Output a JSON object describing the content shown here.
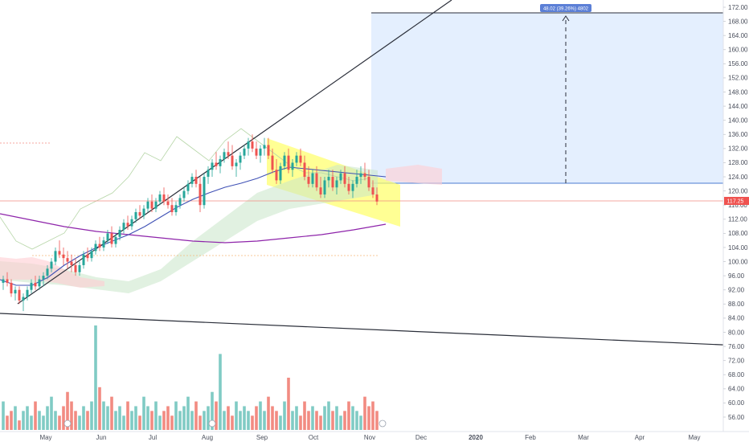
{
  "colors": {
    "up": "#26a69a",
    "down": "#ef5350",
    "up_volume": "#80cbc4",
    "down_volume": "#f28b82",
    "ma_blue": "#3f51b5",
    "ma_purple": "#8e24aa",
    "channel_fill": "#ffff66",
    "target_box": "#dbeafe",
    "last_price_bg": "#ef5350"
  },
  "price_axis": {
    "ticks": [
      "172.00",
      "168.00",
      "164.00",
      "160.00",
      "156.00",
      "152.00",
      "148.00",
      "144.00",
      "140.00",
      "136.00",
      "132.00",
      "128.00",
      "124.00",
      "120.00",
      "116.00",
      "112.00",
      "108.00",
      "104.00",
      "100.00",
      "96.00",
      "92.00",
      "88.00",
      "84.00",
      "80.00",
      "76.00",
      "72.00",
      "68.00",
      "64.00",
      "60.00",
      "56.00"
    ],
    "last_price_label": "117.25"
  },
  "time_axis": {
    "labels": [
      "May",
      "Jun",
      "Jul",
      "Aug",
      "Sep",
      "Oct",
      "Nov",
      "Dec",
      "2020",
      "Feb",
      "Mar",
      "Apr",
      "May"
    ]
  },
  "measure_label": "48.02 (39.26%) 4802",
  "chart_data": {
    "type": "candlestick",
    "x_start": "2019-04-22",
    "ylim": [
      54,
      174
    ],
    "candles": [
      [
        94,
        96,
        92,
        95
      ],
      [
        95,
        97,
        93,
        94
      ],
      [
        94,
        95,
        90,
        91
      ],
      [
        91,
        93,
        89,
        92
      ],
      [
        92,
        93,
        88,
        89
      ],
      [
        89,
        91,
        86,
        90
      ],
      [
        90,
        93,
        89,
        92
      ],
      [
        92,
        95,
        91,
        94
      ],
      [
        94,
        96,
        92,
        93
      ],
      [
        93,
        96,
        92,
        95
      ],
      [
        95,
        97,
        93,
        96
      ],
      [
        96,
        99,
        95,
        98
      ],
      [
        98,
        101,
        97,
        100
      ],
      [
        100,
        104,
        99,
        103
      ],
      [
        103,
        106,
        101,
        102
      ],
      [
        102,
        104,
        99,
        101
      ],
      [
        101,
        103,
        98,
        100
      ],
      [
        100,
        102,
        97,
        99
      ],
      [
        99,
        101,
        96,
        97
      ],
      [
        97,
        100,
        96,
        99
      ],
      [
        99,
        103,
        98,
        102
      ],
      [
        102,
        104,
        100,
        101
      ],
      [
        101,
        104,
        100,
        103
      ],
      [
        103,
        106,
        102,
        105
      ],
      [
        105,
        107,
        103,
        104
      ],
      [
        104,
        107,
        103,
        106
      ],
      [
        106,
        109,
        105,
        108
      ],
      [
        108,
        110,
        104,
        105
      ],
      [
        105,
        108,
        104,
        107
      ],
      [
        107,
        110,
        106,
        109
      ],
      [
        109,
        112,
        108,
        111
      ],
      [
        111,
        113,
        109,
        110
      ],
      [
        110,
        113,
        109,
        112
      ],
      [
        112,
        115,
        111,
        114
      ],
      [
        114,
        116,
        112,
        113
      ],
      [
        113,
        116,
        112,
        115
      ],
      [
        115,
        118,
        114,
        117
      ],
      [
        117,
        119,
        114,
        115
      ],
      [
        115,
        118,
        114,
        117
      ],
      [
        117,
        120,
        116,
        119
      ],
      [
        119,
        121,
        116,
        117
      ],
      [
        117,
        119,
        115,
        116
      ],
      [
        116,
        118,
        113,
        114
      ],
      [
        114,
        117,
        113,
        116
      ],
      [
        116,
        119,
        115,
        118
      ],
      [
        118,
        121,
        117,
        120
      ],
      [
        120,
        123,
        119,
        122
      ],
      [
        122,
        125,
        121,
        124
      ],
      [
        124,
        126,
        121,
        122
      ],
      [
        122,
        124,
        114,
        116
      ],
      [
        116,
        125,
        115,
        124
      ],
      [
        124,
        127,
        122,
        126
      ],
      [
        126,
        129,
        124,
        128
      ],
      [
        128,
        131,
        126,
        127
      ],
      [
        127,
        130,
        125,
        129
      ],
      [
        129,
        132,
        128,
        131
      ],
      [
        131,
        134,
        129,
        130
      ],
      [
        130,
        133,
        126,
        127
      ],
      [
        127,
        129,
        124,
        128
      ],
      [
        128,
        131,
        126,
        130
      ],
      [
        130,
        133,
        129,
        132
      ],
      [
        132,
        135,
        130,
        134
      ],
      [
        134,
        136,
        131,
        132
      ],
      [
        132,
        134,
        129,
        130
      ],
      [
        130,
        133,
        128,
        132
      ],
      [
        132,
        135,
        130,
        133
      ],
      [
        133,
        135,
        129,
        130
      ],
      [
        130,
        132,
        125,
        126
      ],
      [
        126,
        129,
        122,
        123
      ],
      [
        123,
        128,
        122,
        127
      ],
      [
        127,
        131,
        126,
        130
      ],
      [
        130,
        132,
        125,
        126
      ],
      [
        126,
        129,
        124,
        128
      ],
      [
        128,
        131,
        127,
        130
      ],
      [
        130,
        132,
        127,
        128
      ],
      [
        128,
        130,
        123,
        124
      ],
      [
        124,
        127,
        121,
        122
      ],
      [
        122,
        126,
        121,
        125
      ],
      [
        125,
        127,
        120,
        121
      ],
      [
        121,
        124,
        118,
        119
      ],
      [
        119,
        124,
        118,
        123
      ],
      [
        123,
        126,
        121,
        124
      ],
      [
        124,
        126,
        120,
        121
      ],
      [
        121,
        124,
        119,
        123
      ],
      [
        123,
        126,
        122,
        125
      ],
      [
        125,
        127,
        121,
        122
      ],
      [
        122,
        124,
        119,
        120
      ],
      [
        120,
        123,
        118,
        122
      ],
      [
        122,
        126,
        121,
        124
      ],
      [
        124,
        127,
        122,
        125
      ],
      [
        125,
        128,
        123,
        124
      ],
      [
        124,
        126,
        120,
        121
      ],
      [
        121,
        123,
        118,
        119
      ],
      [
        119,
        121,
        116,
        117
      ]
    ],
    "volume": [
      6,
      3,
      4,
      5,
      2,
      4,
      5,
      3,
      6,
      4,
      3,
      5,
      7,
      4,
      3,
      5,
      8,
      6,
      4,
      3,
      5,
      4,
      6,
      22,
      9,
      6,
      5,
      7,
      4,
      5,
      3,
      6,
      4,
      5,
      3,
      7,
      5,
      4,
      6,
      3,
      4,
      5,
      3,
      6,
      4,
      5,
      7,
      4,
      6,
      3,
      4,
      5,
      8,
      6,
      16,
      4,
      5,
      3,
      6,
      4,
      5,
      4,
      3,
      5,
      6,
      4,
      7,
      5,
      4,
      3,
      6,
      11,
      4,
      5,
      3,
      6,
      4,
      5,
      4,
      3,
      5,
      6,
      4,
      5,
      3,
      4,
      6,
      5,
      4,
      3,
      7,
      5,
      6,
      4
    ]
  }
}
